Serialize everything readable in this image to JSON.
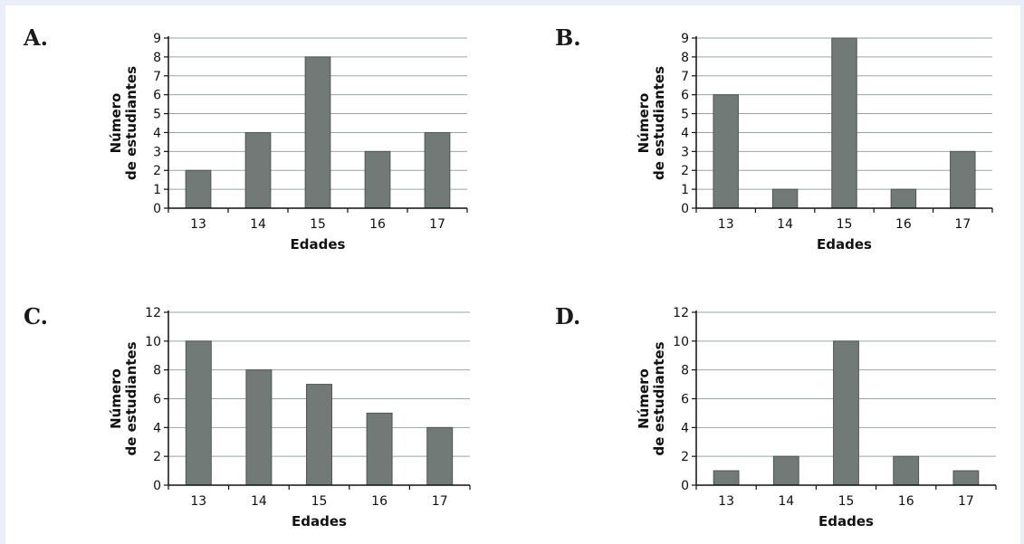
{
  "chart_data": [
    {
      "type": "bar",
      "option": "A.",
      "categories": [
        "13",
        "14",
        "15",
        "16",
        "17"
      ],
      "values": [
        2,
        4,
        8,
        3,
        4
      ],
      "xlabel": "Edades",
      "ylabel_lines": [
        "Número",
        "de estudiantes"
      ],
      "ylim": [
        0,
        9
      ],
      "yticks": [
        0,
        1,
        2,
        3,
        4,
        5,
        6,
        7,
        8,
        9
      ],
      "grid": true,
      "bar_color": "#717a76"
    },
    {
      "type": "bar",
      "option": "B.",
      "categories": [
        "13",
        "14",
        "15",
        "16",
        "17"
      ],
      "values": [
        6,
        1,
        9,
        1,
        3
      ],
      "xlabel": "Edades",
      "ylabel_lines": [
        "Número",
        "de estudiantes"
      ],
      "ylim": [
        0,
        9
      ],
      "yticks": [
        0,
        1,
        2,
        3,
        4,
        5,
        6,
        7,
        8,
        9
      ],
      "grid": true,
      "bar_color": "#717a76"
    },
    {
      "type": "bar",
      "option": "C.",
      "categories": [
        "13",
        "14",
        "15",
        "16",
        "17"
      ],
      "values": [
        10,
        8,
        7,
        5,
        4
      ],
      "xlabel": "Edades",
      "ylabel_lines": [
        "Número",
        "de estudiantes"
      ],
      "ylim": [
        0,
        12
      ],
      "yticks": [
        0,
        2,
        4,
        6,
        8,
        10,
        12
      ],
      "grid": true,
      "bar_color": "#717a76"
    },
    {
      "type": "bar",
      "option": "D.",
      "categories": [
        "13",
        "14",
        "15",
        "16",
        "17"
      ],
      "values": [
        1,
        2,
        10,
        2,
        1
      ],
      "xlabel": "Edades",
      "ylabel_lines": [
        "Número",
        "de estudiantes"
      ],
      "ylim": [
        0,
        12
      ],
      "yticks": [
        0,
        2,
        4,
        6,
        8,
        10,
        12
      ],
      "grid": true,
      "bar_color": "#717a76"
    }
  ]
}
